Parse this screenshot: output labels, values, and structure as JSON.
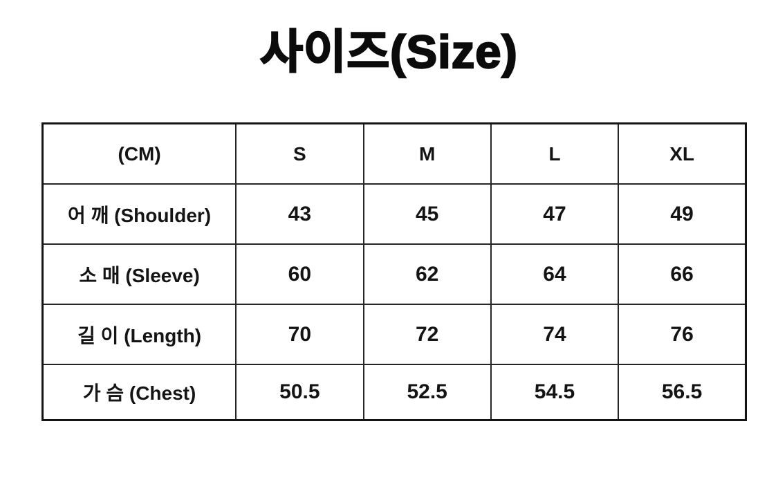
{
  "page": {
    "title": "사이즈(Size)",
    "background_color": "#ffffff",
    "text_color": "#141414",
    "border_color": "#262626"
  },
  "chart_data": {
    "type": "table",
    "title": "사이즈(Size)",
    "unit_note": "(CM)",
    "columns": [
      "(CM)",
      "S",
      "M",
      "L",
      "XL"
    ],
    "rows": [
      {
        "label": "어 깨 (Shoulder)",
        "values": [
          "43",
          "45",
          "47",
          "49"
        ]
      },
      {
        "label": "소 매 (Sleeve)",
        "values": [
          "60",
          "62",
          "64",
          "66"
        ]
      },
      {
        "label": "길 이 (Length)",
        "values": [
          "70",
          "72",
          "74",
          "76"
        ]
      },
      {
        "label": "가 슴 (Chest)",
        "values": [
          "50.5",
          "52.5",
          "54.5",
          "56.5"
        ]
      }
    ],
    "layout": {
      "grid": true,
      "header_position": "top",
      "label_column_position": "left"
    }
  }
}
